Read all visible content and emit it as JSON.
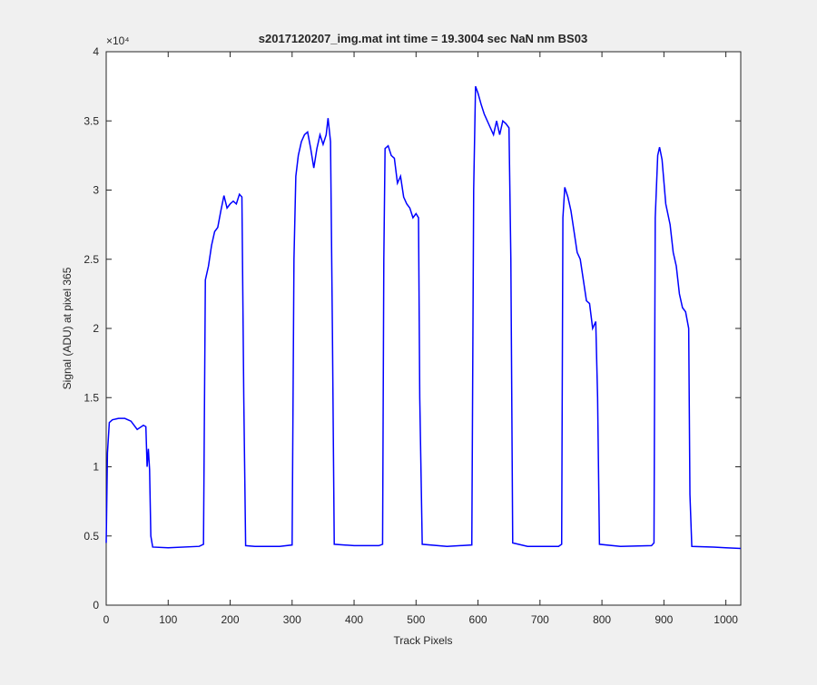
{
  "chart_data": {
    "type": "line",
    "title": "s2017120207_img.mat int time = 19.3004 sec  NaN nm BS03",
    "x_label": "Track Pixels",
    "y_label": "Signal (ADU) at pixel 365",
    "y_exponent_label": "×10⁴",
    "xlim": [
      0,
      1024
    ],
    "xticks": [
      0,
      100,
      200,
      300,
      400,
      500,
      600,
      700,
      800,
      900,
      1000
    ],
    "ylim": [
      0,
      40000
    ],
    "yticks": [
      {
        "value": 0,
        "label": "0"
      },
      {
        "value": 5000,
        "label": "0.5"
      },
      {
        "value": 10000,
        "label": "1"
      },
      {
        "value": 15000,
        "label": "1.5"
      },
      {
        "value": 20000,
        "label": "2"
      },
      {
        "value": 25000,
        "label": "2.5"
      },
      {
        "value": 30000,
        "label": "3"
      },
      {
        "value": 35000,
        "label": "3.5"
      },
      {
        "value": 40000,
        "label": "4"
      }
    ],
    "series": [
      {
        "color": "#0000ff",
        "x": [
          0,
          2,
          5,
          10,
          20,
          30,
          40,
          50,
          60,
          64,
          66,
          68,
          70,
          72,
          75,
          100,
          150,
          157,
          160,
          165,
          170,
          175,
          180,
          185,
          190,
          195,
          200,
          205,
          210,
          215,
          219,
          222,
          225,
          240,
          280,
          300,
          303,
          306,
          310,
          315,
          320,
          325,
          330,
          335,
          340,
          345,
          350,
          355,
          358,
          362,
          365,
          368,
          400,
          440,
          446,
          448,
          450,
          455,
          460,
          465,
          470,
          475,
          480,
          485,
          490,
          495,
          500,
          504,
          506,
          510,
          550,
          590,
          593,
          596,
          600,
          605,
          610,
          615,
          620,
          625,
          630,
          635,
          640,
          645,
          650,
          653,
          656,
          680,
          730,
          735,
          737,
          740,
          745,
          750,
          755,
          760,
          765,
          770,
          775,
          780,
          785,
          790,
          793,
          796,
          830,
          880,
          884,
          886,
          890,
          893,
          897,
          903,
          910,
          915,
          920,
          925,
          930,
          935,
          940,
          942,
          945,
          980,
          1000,
          1024
        ],
        "values": [
          4500,
          11000,
          13200,
          13400,
          13500,
          13500,
          13300,
          12700,
          13000,
          12900,
          10000,
          11300,
          9800,
          5000,
          4200,
          4150,
          4250,
          4400,
          23500,
          24500,
          26000,
          27000,
          27300,
          28500,
          29600,
          28700,
          29000,
          29200,
          29000,
          29700,
          29500,
          15000,
          4300,
          4250,
          4250,
          4350,
          25000,
          31000,
          32500,
          33500,
          34000,
          34200,
          33000,
          31600,
          33000,
          34000,
          33300,
          34000,
          35200,
          33500,
          20000,
          4400,
          4300,
          4300,
          4400,
          25000,
          33000,
          33200,
          32500,
          32300,
          30500,
          31000,
          29500,
          29000,
          28700,
          28000,
          28300,
          28000,
          15000,
          4400,
          4250,
          4350,
          30000,
          37500,
          37000,
          36200,
          35500,
          35000,
          34500,
          34000,
          35000,
          34000,
          35000,
          34800,
          34500,
          25000,
          4500,
          4250,
          4250,
          4400,
          28000,
          30200,
          29500,
          28500,
          27000,
          25500,
          25000,
          23500,
          22000,
          21800,
          20000,
          20500,
          15000,
          4400,
          4250,
          4300,
          4500,
          28000,
          32500,
          33100,
          32200,
          29000,
          27500,
          25500,
          24500,
          22500,
          21500,
          21200,
          20000,
          8000,
          4250,
          4200,
          4150,
          4100
        ]
      }
    ]
  }
}
